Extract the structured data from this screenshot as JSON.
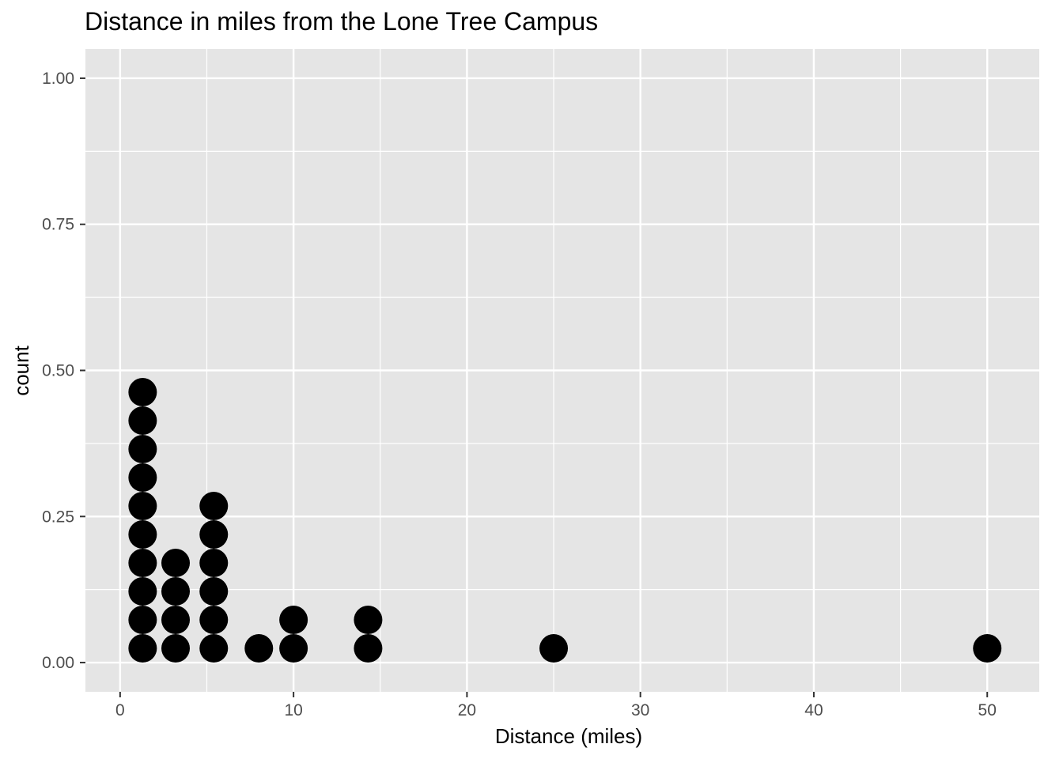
{
  "chart_data": {
    "type": "dotplot",
    "title": "Distance in miles from the Lone Tree Campus",
    "xlabel": "Distance (miles)",
    "ylabel": "count",
    "xlim": [
      -2,
      53
    ],
    "ylim": [
      -0.05,
      1.05
    ],
    "x_ticks": [
      0,
      10,
      20,
      30,
      40,
      50
    ],
    "x_tick_labels": [
      "0",
      "10",
      "20",
      "30",
      "40",
      "50"
    ],
    "y_ticks": [
      0,
      0.25,
      0.5,
      0.75,
      1.0
    ],
    "y_tick_labels": [
      "0.00",
      "0.25",
      "0.50",
      "0.75",
      "1.00"
    ],
    "grid": true,
    "legend": "none",
    "panel_background": "#e5e5e5",
    "grid_color": "#ffffff",
    "dot_color": "#000000",
    "stacks": [
      {
        "x": 1.3,
        "count": 10
      },
      {
        "x": 3.2,
        "count": 4
      },
      {
        "x": 5.4,
        "count": 6
      },
      {
        "x": 8.0,
        "count": 1
      },
      {
        "x": 10.0,
        "count": 2
      },
      {
        "x": 14.3,
        "count": 2
      },
      {
        "x": 25.0,
        "count": 1
      },
      {
        "x": 50.0,
        "count": 1
      }
    ]
  }
}
